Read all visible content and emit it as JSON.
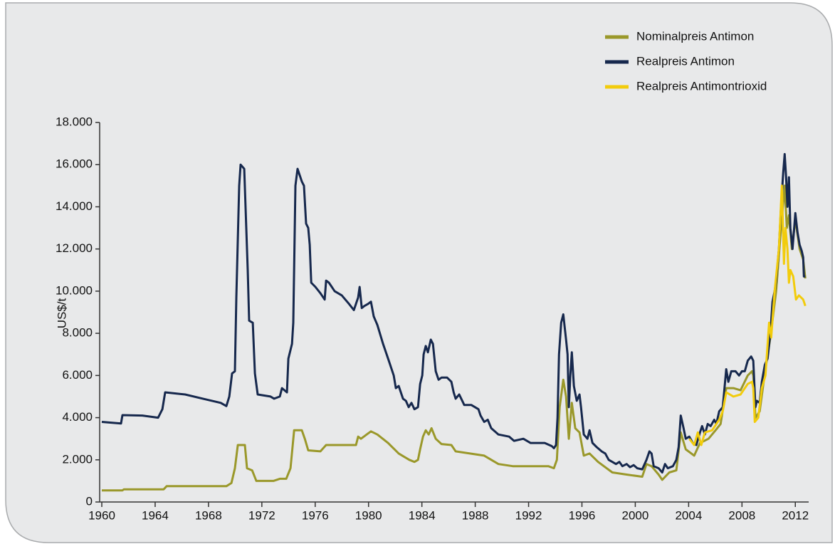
{
  "chart_data": {
    "type": "line",
    "y_label": "US$/t",
    "xlim": [
      1960,
      2013
    ],
    "xticks": [
      1960,
      1964,
      1968,
      1972,
      1976,
      1980,
      1984,
      1988,
      1992,
      1996,
      2000,
      2004,
      2008,
      2012
    ],
    "ylim": [
      0,
      18000
    ],
    "yticks": [
      0,
      {
        "value": 2000,
        "label": "2.000"
      },
      {
        "value": 4000,
        "label": "4.000"
      },
      {
        "value": 6000,
        "label": "6.000"
      },
      {
        "value": 8000,
        "label": "8.000"
      },
      {
        "value": 10000,
        "label": "10.000"
      },
      {
        "value": 12000,
        "label": "12.000"
      },
      {
        "value": 14000,
        "label": "14.000"
      },
      {
        "value": 16000,
        "label": "16.000"
      },
      {
        "value": 18000,
        "label": "18.000"
      }
    ],
    "legend_position": "top-right",
    "series": [
      {
        "name": "Nominalpreis Antimon",
        "color": "#9a982a",
        "x": [
          1960.0,
          1961.55,
          1961.66,
          1964.64,
          1964.86,
          1969.34,
          1969.72,
          1969.98,
          1970.2,
          1970.73,
          1970.89,
          1971.27,
          1971.59,
          1972.87,
          1973.35,
          1973.83,
          1974.15,
          1974.42,
          1975.0,
          1975.22,
          1975.48,
          1976.39,
          1976.82,
          1979.06,
          1979.22,
          1979.43,
          1979.86,
          1980.18,
          1980.66,
          1981.46,
          1982.26,
          1983.06,
          1983.44,
          1983.71,
          1983.87,
          1984.08,
          1984.29,
          1984.51,
          1984.72,
          1985.04,
          1985.47,
          1986.21,
          1986.53,
          1987.6,
          1988.67,
          1989.74,
          1990.81,
          1992.14,
          1993.48,
          1993.9,
          1994.12,
          1994.33,
          1994.6,
          1994.81,
          1995.02,
          1995.24,
          1995.5,
          1995.82,
          1996.14,
          1996.57,
          1997.21,
          1998.28,
          1999.35,
          2000.52,
          2000.84,
          2001.22,
          2001.75,
          2002.02,
          2002.55,
          2003.08,
          2003.41,
          2003.78,
          2004.42,
          2004.85,
          2005.49,
          2006.02,
          2006.4,
          2006.82,
          2007.36,
          2007.89,
          2008.43,
          2008.75,
          2008.85,
          2009.01,
          2009.33,
          2009.71,
          2010.13,
          2010.56,
          2010.93,
          2011.2,
          2011.36,
          2011.52,
          2011.74,
          2012.0,
          2012.32,
          2012.59,
          2012.75
        ],
        "values": [
          550,
          550,
          600,
          600,
          750,
          750,
          900,
          1600,
          2700,
          2700,
          1600,
          1500,
          1000,
          1000,
          1100,
          1100,
          1600,
          3400,
          3400,
          3000,
          2450,
          2400,
          2700,
          2700,
          3100,
          3000,
          3200,
          3350,
          3200,
          2800,
          2300,
          2000,
          1900,
          2000,
          2500,
          3100,
          3400,
          3200,
          3500,
          3000,
          2750,
          2700,
          2400,
          2300,
          2200,
          1800,
          1700,
          1700,
          1700,
          1600,
          2000,
          4500,
          5800,
          5000,
          3000,
          4700,
          3500,
          3300,
          2200,
          2300,
          1900,
          1400,
          1300,
          1200,
          1800,
          1700,
          1300,
          1050,
          1400,
          1500,
          3300,
          2500,
          2200,
          2800,
          3000,
          3400,
          3700,
          5400,
          5400,
          5300,
          6000,
          6200,
          6000,
          4000,
          4300,
          6100,
          7800,
          10000,
          13000,
          15000,
          13000,
          13600,
          12000,
          13400,
          12000,
          11500,
          10600
        ]
      },
      {
        "name": "Realpreis Antimon",
        "color": "#16284d",
        "x": [
          1960.0,
          1961.44,
          1961.55,
          1963.04,
          1964.22,
          1964.54,
          1964.75,
          1966.25,
          1967.58,
          1968.92,
          1969.34,
          1969.56,
          1969.77,
          1969.98,
          1970.09,
          1970.3,
          1970.41,
          1970.68,
          1970.94,
          1971.05,
          1971.32,
          1971.48,
          1971.69,
          1972.65,
          1972.92,
          1973.35,
          1973.51,
          1973.88,
          1973.99,
          1974.26,
          1974.36,
          1974.52,
          1974.68,
          1975.0,
          1975.16,
          1975.32,
          1975.48,
          1975.59,
          1975.7,
          1976.02,
          1976.39,
          1976.71,
          1976.82,
          1977.03,
          1977.46,
          1977.99,
          1978.53,
          1978.9,
          1979.22,
          1979.33,
          1979.43,
          1979.49,
          1979.7,
          1979.97,
          1980.18,
          1980.39,
          1980.66,
          1981.09,
          1981.52,
          1981.89,
          1982.05,
          1982.26,
          1982.58,
          1982.8,
          1983.01,
          1983.22,
          1983.44,
          1983.71,
          1983.87,
          1984.03,
          1984.13,
          1984.29,
          1984.45,
          1984.67,
          1984.83,
          1985.04,
          1985.25,
          1985.47,
          1985.89,
          1986.21,
          1986.38,
          1986.53,
          1986.8,
          1987.18,
          1987.71,
          1988.24,
          1988.4,
          1988.67,
          1988.94,
          1989.2,
          1989.74,
          1990.54,
          1990.91,
          1991.61,
          1992.14,
          1993.21,
          1993.74,
          1993.9,
          1994.06,
          1994.17,
          1994.28,
          1994.44,
          1994.6,
          1994.81,
          1994.92,
          1995.02,
          1995.13,
          1995.24,
          1995.4,
          1995.61,
          1995.82,
          1995.93,
          1996.14,
          1996.41,
          1996.57,
          1996.79,
          1997.11,
          1997.48,
          1997.75,
          1998.01,
          1998.28,
          1998.55,
          1998.81,
          1999.03,
          1999.35,
          1999.61,
          1999.88,
          2000.15,
          2000.52,
          2000.84,
          2001.06,
          2001.22,
          2001.38,
          2001.75,
          2002.02,
          2002.23,
          2002.44,
          2002.82,
          2003.08,
          2003.25,
          2003.41,
          2003.62,
          2003.78,
          2004.05,
          2004.31,
          2004.58,
          2004.85,
          2005.01,
          2005.22,
          2005.43,
          2005.65,
          2005.92,
          2006.08,
          2006.29,
          2006.56,
          2006.72,
          2006.82,
          2006.98,
          2007.2,
          2007.52,
          2007.78,
          2008.0,
          2008.21,
          2008.43,
          2008.69,
          2008.85,
          2009.01,
          2009.12,
          2009.33,
          2009.49,
          2009.71,
          2009.92,
          2010.13,
          2010.29,
          2010.45,
          2010.56,
          2010.77,
          2010.93,
          2011.09,
          2011.2,
          2011.31,
          2011.41,
          2011.52,
          2011.63,
          2011.79,
          2012.0,
          2012.16,
          2012.32,
          2012.48,
          2012.59,
          2012.64,
          2012.75
        ],
        "values": [
          3800,
          3720,
          4120,
          4100,
          4000,
          4400,
          5200,
          5100,
          4900,
          4700,
          4550,
          5000,
          6100,
          6200,
          9700,
          15000,
          16000,
          15800,
          11000,
          8600,
          8500,
          6100,
          5100,
          5000,
          4900,
          5000,
          5400,
          5200,
          6800,
          7500,
          8500,
          15000,
          15800,
          15200,
          15000,
          13200,
          13000,
          12200,
          10400,
          10200,
          9900,
          9600,
          10500,
          10400,
          10000,
          9800,
          9400,
          9100,
          9700,
          10200,
          9600,
          9200,
          9300,
          9400,
          9500,
          8800,
          8400,
          7500,
          6700,
          6000,
          5400,
          5500,
          4900,
          4800,
          4500,
          4700,
          4400,
          4500,
          5600,
          6000,
          7000,
          7400,
          7100,
          7700,
          7500,
          6200,
          5800,
          5900,
          5900,
          5700,
          5200,
          4900,
          5100,
          4600,
          4600,
          4400,
          4100,
          3800,
          3900,
          3500,
          3200,
          3100,
          2900,
          3000,
          2800,
          2800,
          2650,
          2550,
          2700,
          4000,
          7000,
          8500,
          8900,
          7700,
          7000,
          4500,
          6000,
          7100,
          5500,
          4800,
          5100,
          4500,
          3200,
          3000,
          3400,
          2800,
          2600,
          2400,
          2300,
          2000,
          1900,
          1800,
          1900,
          1700,
          1800,
          1650,
          1750,
          1600,
          1550,
          2000,
          2400,
          2300,
          1700,
          1600,
          1400,
          1800,
          1600,
          1700,
          2000,
          2600,
          4100,
          3500,
          3000,
          3100,
          2800,
          2700,
          3300,
          3600,
          3200,
          3700,
          3600,
          3900,
          3700,
          4300,
          4500,
          5600,
          6300,
          5700,
          6200,
          6200,
          6000,
          6200,
          6200,
          6700,
          6900,
          6700,
          4500,
          4800,
          4700,
          5700,
          6500,
          6800,
          8000,
          9500,
          10000,
          10500,
          12000,
          14000,
          15600,
          16500,
          15400,
          14000,
          15400,
          13000,
          12000,
          13700,
          12800,
          12200,
          11900,
          11600,
          10700,
          10700
        ]
      },
      {
        "name": "Realpreis Antimontrioxid",
        "color": "#f2cc0c",
        "x": [
          2004.05,
          2004.42,
          2004.69,
          2004.95,
          2005.22,
          2005.76,
          2006.29,
          2006.56,
          2006.82,
          2007.36,
          2007.89,
          2008.43,
          2008.75,
          2008.85,
          2008.96,
          2009.22,
          2009.49,
          2009.76,
          2010.03,
          2010.19,
          2010.45,
          2010.77,
          2010.99,
          2011.15,
          2011.26,
          2011.41,
          2011.52,
          2011.63,
          2011.84,
          2012.05,
          2012.27,
          2012.59,
          2012.75
        ],
        "values": [
          3000,
          2700,
          3300,
          2700,
          3300,
          3400,
          3900,
          4300,
          5200,
          5000,
          5100,
          5600,
          5700,
          5400,
          3800,
          4000,
          5400,
          6000,
          8500,
          7800,
          10000,
          12000,
          15000,
          11300,
          13000,
          12000,
          10400,
          11000,
          10700,
          9600,
          9800,
          9600,
          9300
        ]
      }
    ]
  }
}
